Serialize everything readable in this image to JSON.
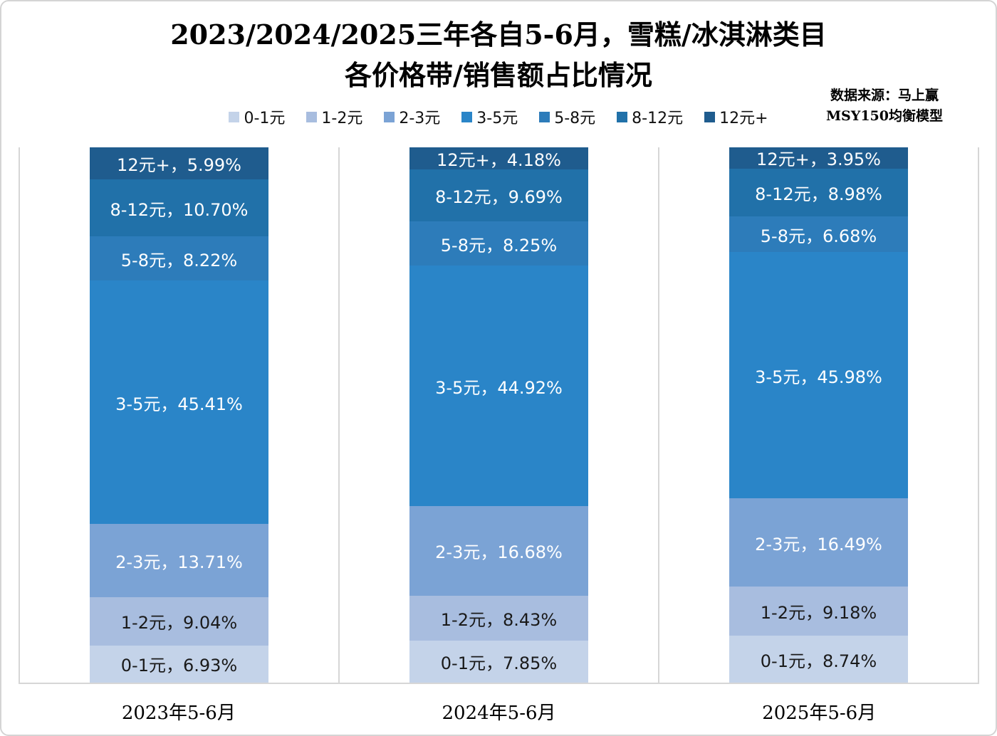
{
  "header": {
    "title_line1": "2023/2024/2025三年各自5-6月，雪糕/冰淇淋类目",
    "title_line2": "各价格带/销售额占比情况",
    "source_line1": "数据来源：马上赢",
    "source_line2": "MSY150均衡模型"
  },
  "chart_data": {
    "type": "bar",
    "stacked": true,
    "orientation": "vertical",
    "unit": "%",
    "ylim": [
      0,
      100
    ],
    "grid": "vertical-panel-separators",
    "legend_position": "top",
    "title": "2023/2024/2025三年各自5-6月，雪糕/冰淇淋类目 各价格带/销售额占比情况",
    "categories": [
      "2023年5-6月",
      "2024年5-6月",
      "2025年5-6月"
    ],
    "series": [
      {
        "name": "0-1元",
        "color": "#C4D3E9",
        "label_color": "#1A1A1A",
        "values": [
          6.93,
          7.85,
          8.74
        ]
      },
      {
        "name": "1-2元",
        "color": "#A8BDDF",
        "label_color": "#1A1A1A",
        "values": [
          9.04,
          8.43,
          9.18
        ]
      },
      {
        "name": "2-3元",
        "color": "#7BA3D5",
        "label_color": "#FFFFFF",
        "values": [
          13.71,
          16.68,
          16.49
        ]
      },
      {
        "name": "3-5元",
        "color": "#2A85C8",
        "label_color": "#FFFFFF",
        "values": [
          45.41,
          44.92,
          45.98
        ]
      },
      {
        "name": "5-8元",
        "color": "#2D7CBA",
        "label_color": "#FFFFFF",
        "values": [
          8.22,
          8.25,
          6.68
        ]
      },
      {
        "name": "8-12元",
        "color": "#2171A9",
        "label_color": "#FFFFFF",
        "values": [
          10.7,
          9.69,
          8.98
        ]
      },
      {
        "name": "12元+",
        "color": "#1F5C8E",
        "label_color": "#FFFFFF",
        "values": [
          5.99,
          4.18,
          3.95
        ]
      }
    ],
    "label_separator": "，",
    "label_suffix": "%"
  },
  "colors": {
    "axis_line": "#D6D6D6",
    "outer_border": "#D4D4D4",
    "background": "#FFFFFF"
  }
}
